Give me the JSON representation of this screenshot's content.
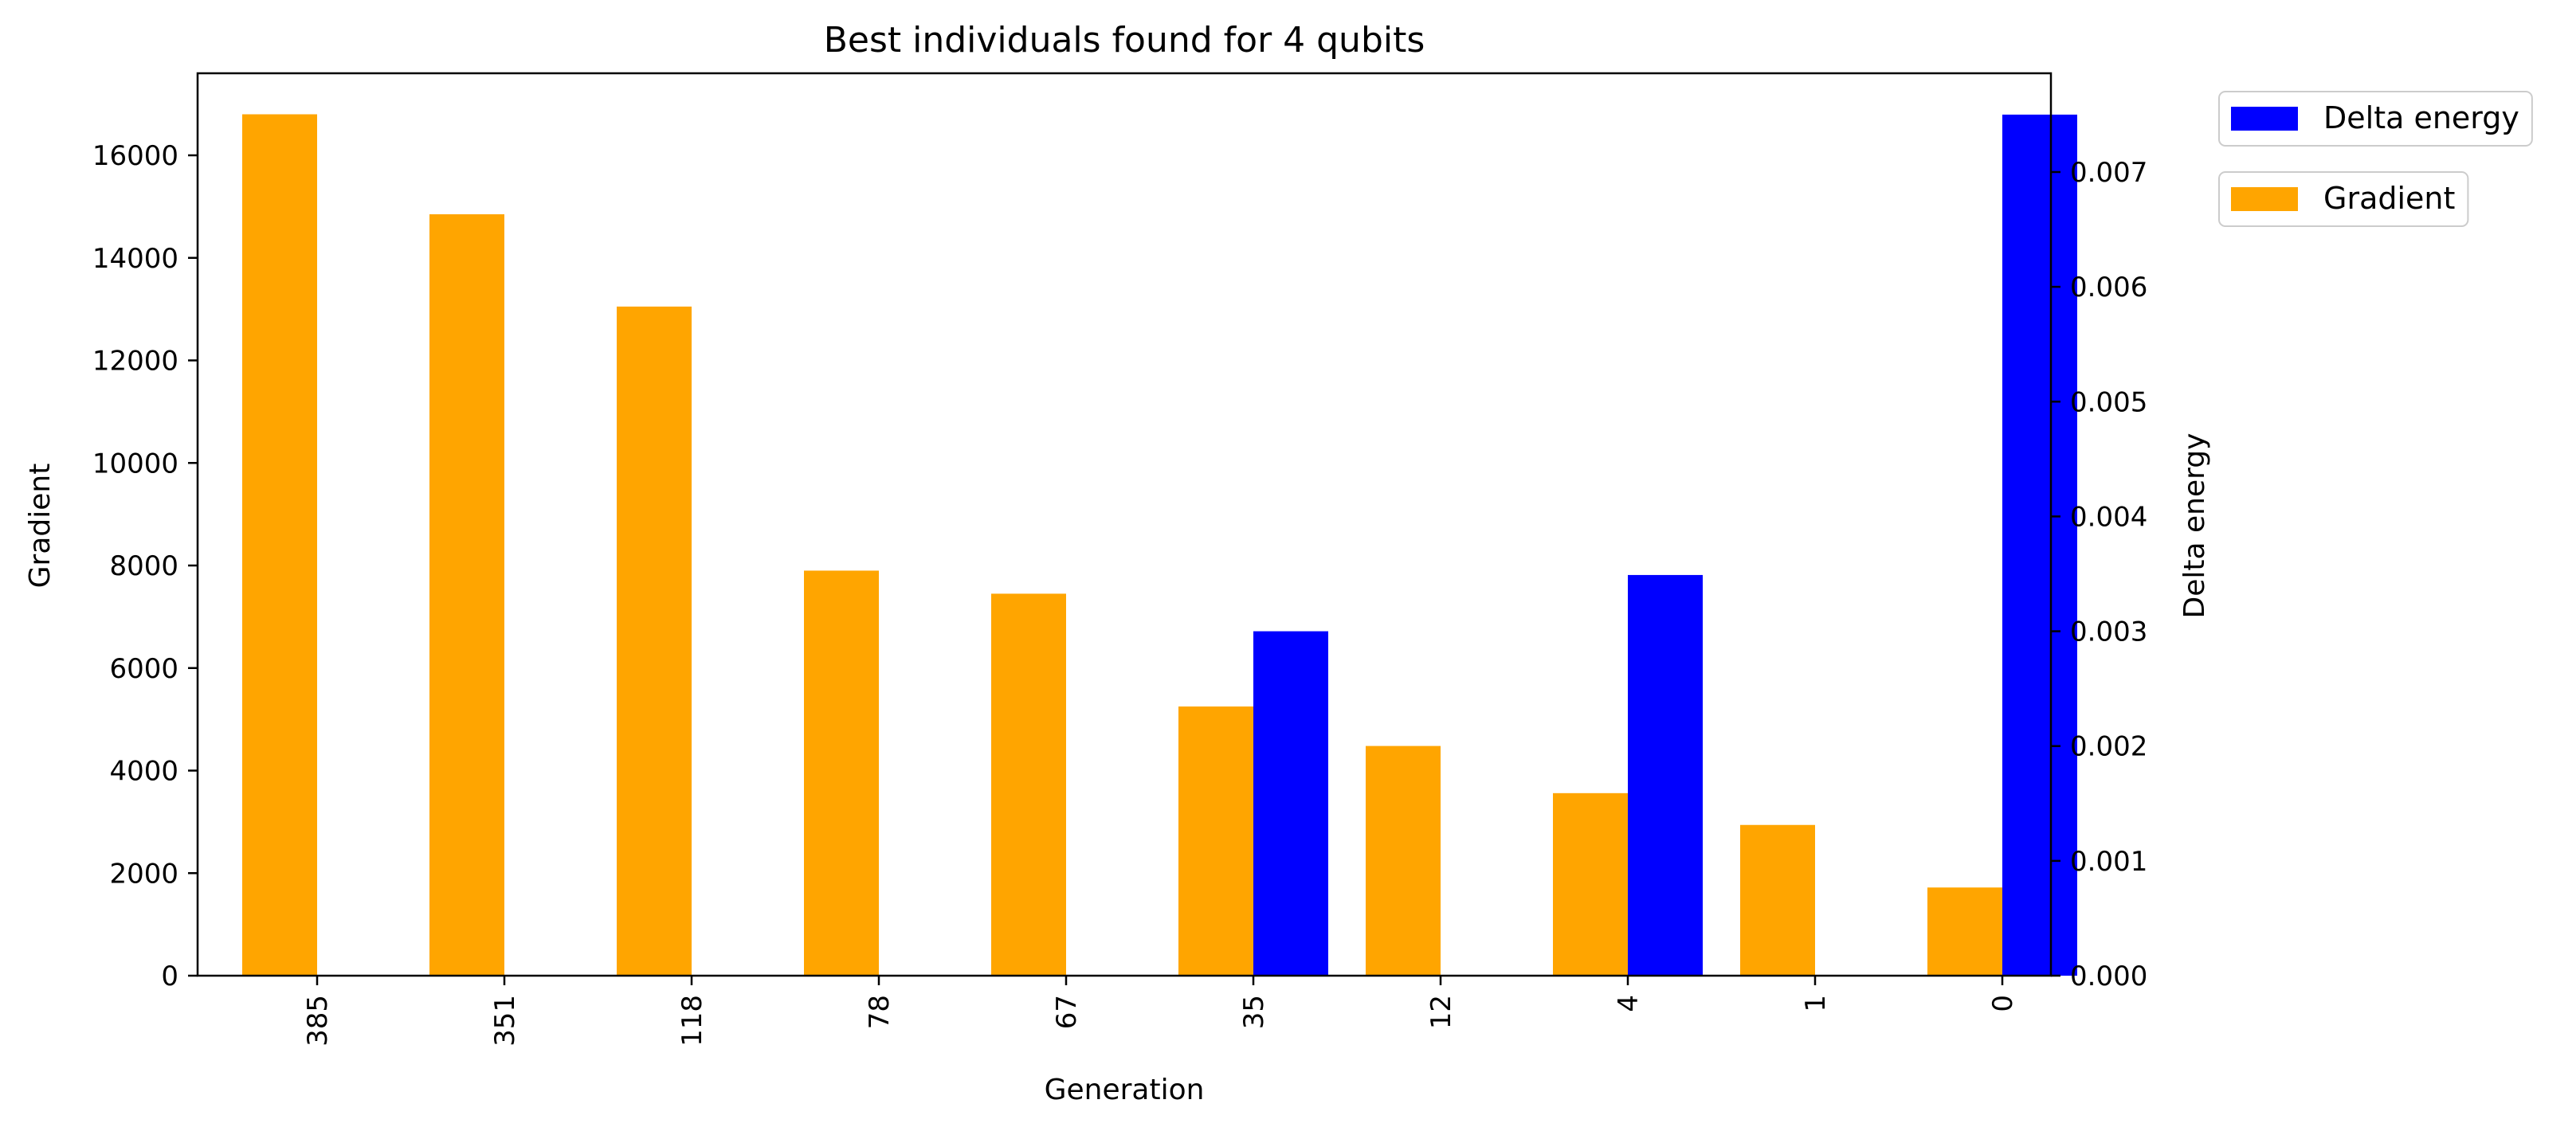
{
  "chart_data": {
    "type": "bar",
    "title": "Best individuals found for 4 qubits",
    "xlabel": "Generation",
    "ylabel_left": "Gradient",
    "ylabel_right": "Delta energy",
    "categories": [
      "385",
      "351",
      "118",
      "78",
      "67",
      "35",
      "12",
      "4",
      "1",
      "0"
    ],
    "series": [
      {
        "name": "Gradient",
        "axis": "left",
        "color": "#FFA500",
        "values": [
          16800,
          14850,
          13050,
          7900,
          7450,
          5250,
          4480,
          3560,
          2940,
          1720
        ]
      },
      {
        "name": "Delta energy",
        "axis": "right",
        "color": "#0000FF",
        "values": [
          0,
          0,
          0,
          0,
          0,
          0.003,
          0,
          0.00349,
          0,
          0.0075
        ]
      }
    ],
    "ylim_left": [
      0,
      17600
    ],
    "ylim_right": [
      0,
      0.00786
    ],
    "yticks_left": [
      "0",
      "2000",
      "4000",
      "6000",
      "8000",
      "10000",
      "12000",
      "14000",
      "16000"
    ],
    "yticks_right": [
      "0.000",
      "0.001",
      "0.002",
      "0.003",
      "0.004",
      "0.005",
      "0.006",
      "0.007"
    ],
    "legend_position": "outside-top-right",
    "grid": false
  }
}
